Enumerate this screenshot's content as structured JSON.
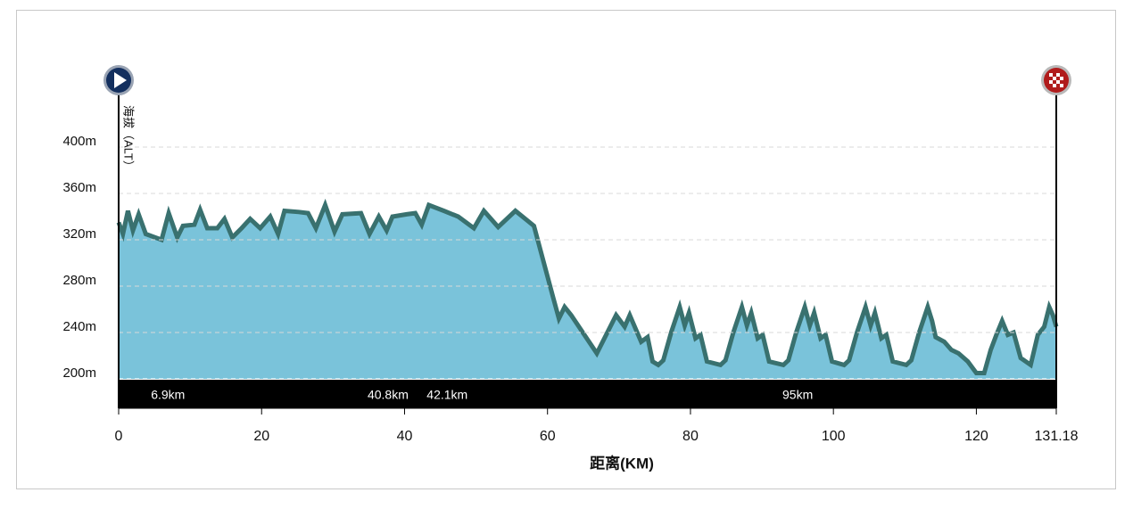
{
  "chart_data": {
    "type": "area",
    "ylabel": "海拔（ALT）",
    "xlabel": "距离(KM)",
    "color": "#7ac3da",
    "line_color": "#39716f",
    "xlim": [
      0,
      131.18
    ],
    "xticks": [
      0,
      20,
      40,
      60,
      80,
      100,
      120,
      131.18
    ],
    "ylim": [
      200,
      440
    ],
    "yticks": [
      {
        "value": 200,
        "label": "200m"
      },
      {
        "value": 240,
        "label": "240m"
      },
      {
        "value": 280,
        "label": "280m"
      },
      {
        "value": 320,
        "label": "320m"
      },
      {
        "value": 360,
        "label": "360m"
      },
      {
        "value": 400,
        "label": "400m"
      }
    ],
    "grid": true,
    "markers": [
      {
        "x": 6.9,
        "label": "6.9km"
      },
      {
        "x": 40.8,
        "label": "40.8km"
      },
      {
        "x": 42.1,
        "label": "42.1km"
      },
      {
        "x": 95,
        "label": "95km"
      }
    ],
    "x": [
      0,
      0.6,
      1.3,
      2,
      2.8,
      3.8,
      6,
      7,
      8.2,
      9,
      10.6,
      11.4,
      12.4,
      13.8,
      14.8,
      15.9,
      17.2,
      18.4,
      19.8,
      21.2,
      22.3,
      23.2,
      25.2,
      26.5,
      27.6,
      28.9,
      30.2,
      31.3,
      33.9,
      35.1,
      36.4,
      37.5,
      38.3,
      40.3,
      41.5,
      42.4,
      43.4,
      45.5,
      47.5,
      49.7,
      51.1,
      53.1,
      55.5,
      57.3,
      58.1,
      60.8,
      61.6,
      62.4,
      63.3,
      66.9,
      69.6,
      70.8,
      71.5,
      73.1,
      74,
      74.7,
      75.5,
      76.2,
      77.3,
      78.5,
      79.2,
      79.8,
      80.7,
      81.4,
      82.3,
      84.2,
      84.9,
      86,
      87.2,
      87.9,
      88.5,
      89.4,
      90.1,
      91,
      93,
      93.7,
      94.8,
      96,
      96.7,
      97.3,
      98.2,
      98.9,
      99.8,
      101.5,
      102.2,
      103.3,
      104.5,
      105.2,
      105.8,
      106.7,
      107.4,
      108.3,
      110.2,
      110.9,
      112,
      113.2,
      113.8,
      114.3,
      115.5,
      116.5,
      117.5,
      118.8,
      120,
      121.1,
      122,
      122.8,
      123.6,
      124.4,
      125.2,
      126.2,
      127.6,
      128.6,
      129.5,
      130.2,
      130.7,
      131.18
    ],
    "values": [
      335,
      325,
      345,
      328,
      342,
      325,
      320,
      343,
      322,
      332,
      333,
      346,
      330,
      330,
      338,
      322,
      330,
      338,
      330,
      340,
      325,
      345,
      344,
      343,
      330,
      350,
      327,
      342,
      343,
      325,
      340,
      328,
      340,
      342,
      343,
      333,
      350,
      345,
      340,
      330,
      345,
      331,
      345,
      336,
      332,
      270,
      252,
      262,
      255,
      222,
      255,
      245,
      255,
      232,
      236,
      215,
      212,
      216,
      240,
      262,
      246,
      257,
      235,
      238,
      215,
      212,
      216,
      240,
      262,
      246,
      257,
      235,
      238,
      215,
      212,
      216,
      240,
      262,
      246,
      257,
      235,
      238,
      215,
      212,
      216,
      240,
      262,
      246,
      257,
      235,
      238,
      215,
      212,
      216,
      240,
      262,
      250,
      236,
      232,
      225,
      222,
      215,
      205,
      205,
      225,
      238,
      250,
      238,
      240,
      218,
      212,
      238,
      245,
      262,
      255,
      245
    ]
  }
}
